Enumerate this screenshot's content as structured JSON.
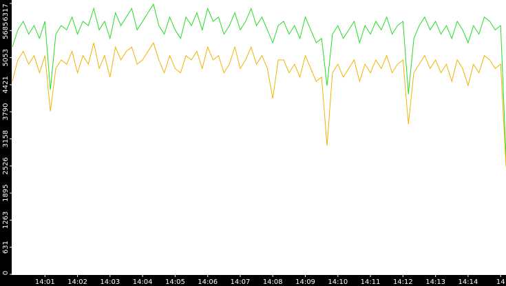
{
  "chart_data": {
    "type": "line",
    "categories": [
      null,
      null,
      null,
      null,
      null,
      null,
      "14:01",
      null,
      null,
      null,
      null,
      null,
      "14:02",
      null,
      null,
      null,
      null,
      null,
      "14:03",
      null,
      null,
      null,
      null,
      null,
      "14:04",
      null,
      null,
      null,
      null,
      null,
      "14:05",
      null,
      null,
      null,
      null,
      null,
      "14:06",
      null,
      null,
      null,
      null,
      null,
      "14:07",
      null,
      null,
      null,
      null,
      null,
      "14:08",
      null,
      null,
      null,
      null,
      null,
      "14:09",
      null,
      null,
      null,
      null,
      null,
      "14:10",
      null,
      null,
      null,
      null,
      null,
      "14:11",
      null,
      null,
      null,
      null,
      null,
      "14:12",
      null,
      null,
      null,
      null,
      null,
      "14:13",
      null,
      null,
      null,
      null,
      null,
      "14:14",
      null,
      null,
      null,
      null,
      null,
      "14",
      null
    ],
    "series": [
      {
        "color": "#22dd22",
        "values": [
          5300,
          5700,
          5900,
          5600,
          5800,
          5500,
          5900,
          4300,
          5600,
          5800,
          5700,
          6000,
          5600,
          5900,
          5800,
          6200,
          5700,
          5900,
          5500,
          6100,
          5800,
          6000,
          6200,
          5700,
          5900,
          6100,
          6300,
          5800,
          5600,
          6000,
          5700,
          5500,
          6000,
          5800,
          6100,
          5700,
          6200,
          5900,
          6000,
          5600,
          5800,
          6100,
          5700,
          5900,
          6200,
          5800,
          6000,
          5700,
          5400,
          5800,
          5900,
          5600,
          5800,
          5500,
          6000,
          5700,
          5400,
          5500,
          4400,
          5600,
          5800,
          5500,
          5700,
          5900,
          5400,
          5800,
          5600,
          5900,
          5700,
          6000,
          5600,
          5800,
          5900,
          4200,
          5500,
          5800,
          6000,
          5700,
          5900,
          5600,
          5800,
          5500,
          5900,
          5700,
          5400,
          5800,
          5600,
          6000,
          5900,
          5700,
          5800,
          2700
        ]
      },
      {
        "color": "#f0b400",
        "values": [
          4500,
          5000,
          5200,
          4900,
          5100,
          4700,
          5100,
          3800,
          4800,
          5000,
          4900,
          5200,
          4700,
          5100,
          4900,
          5400,
          4800,
          5100,
          4600,
          5300,
          5000,
          5200,
          5300,
          4900,
          5000,
          5200,
          5400,
          5000,
          4700,
          5100,
          4800,
          4700,
          5100,
          5000,
          5200,
          4800,
          5300,
          5000,
          5100,
          4700,
          4900,
          5300,
          4800,
          5000,
          5300,
          4900,
          5100,
          4800,
          4100,
          5000,
          5000,
          4700,
          4900,
          4600,
          5100,
          4800,
          4500,
          4600,
          3000,
          4700,
          4900,
          4600,
          4800,
          5000,
          4500,
          4900,
          4700,
          5000,
          4800,
          5100,
          4700,
          4900,
          5000,
          3500,
          4700,
          4900,
          5100,
          4800,
          5000,
          4700,
          4900,
          4500,
          5000,
          4800,
          4400,
          4900,
          4700,
          5100,
          5000,
          4800,
          4900,
          2500
        ]
      }
    ],
    "ylim": [
      0,
      6317
    ],
    "yticks": [
      0,
      631,
      1263,
      1895,
      2526,
      3158,
      3790,
      4421,
      5053,
      5685,
      6317
    ]
  }
}
